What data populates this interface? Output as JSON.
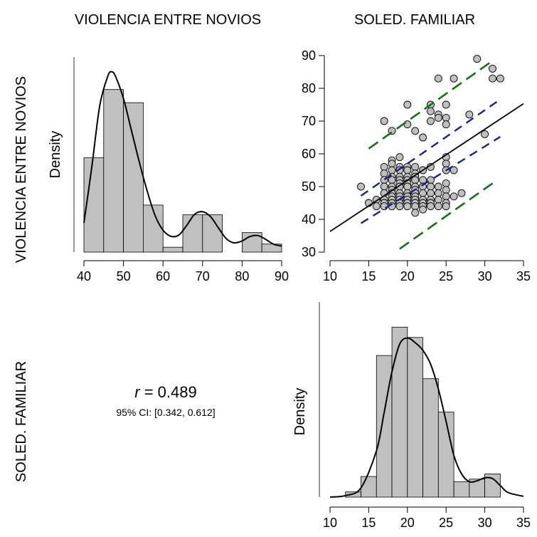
{
  "col_headers": [
    "VIOLENCIA ENTRE NOVIOS",
    "SOLED. FAMILIAR"
  ],
  "row_headers": [
    "VIOLENCIA ENTRE NOVIOS",
    "SOLED. FAMILIAR"
  ],
  "correlation": {
    "r_symbol": "r",
    "r_text": " = 0.489",
    "ci_text": "95% CI: [0.342, 0.612]"
  },
  "colors": {
    "bar_fill": "#c0c0c0",
    "point_fill": "#bfbfbf",
    "regression_line": "#000000",
    "confidence_band": "#1a237e",
    "prediction_band": "#1b6b1b"
  },
  "chart_data": [
    {
      "type": "bar",
      "title": "",
      "xlabel": "",
      "ylabel": "Density",
      "bins": [
        [
          40,
          45
        ],
        [
          45,
          50
        ],
        [
          50,
          55
        ],
        [
          55,
          60
        ],
        [
          60,
          65
        ],
        [
          65,
          70
        ],
        [
          70,
          75
        ],
        [
          75,
          80
        ],
        [
          80,
          85
        ],
        [
          85,
          90
        ]
      ],
      "values": [
        0.0387,
        0.0667,
        0.0613,
        0.0193,
        0.002,
        0.0153,
        0.0153,
        0.0,
        0.008,
        0.0033
      ],
      "density_curve": {
        "x": [
          40,
          42,
          44,
          46,
          47,
          48,
          50,
          52,
          54,
          56,
          58,
          60,
          62,
          64,
          66,
          68,
          70,
          72,
          74,
          76,
          78,
          80,
          82,
          84,
          86,
          88,
          90
        ],
        "y": [
          0.012,
          0.035,
          0.06,
          0.072,
          0.074,
          0.072,
          0.063,
          0.05,
          0.037,
          0.025,
          0.015,
          0.009,
          0.0065,
          0.007,
          0.011,
          0.0155,
          0.0166,
          0.0146,
          0.01,
          0.0055,
          0.0038,
          0.0046,
          0.0064,
          0.0068,
          0.0052,
          0.0032,
          0.0025
        ]
      },
      "x_ticks": [
        40,
        50,
        60,
        70,
        80,
        90
      ],
      "xlim": [
        40,
        90
      ],
      "ylim": [
        0,
        0.078
      ],
      "legend": "none"
    },
    {
      "type": "scatter",
      "title": "",
      "xlabel": "",
      "ylabel": "",
      "x_ticks": [
        10,
        15,
        20,
        25,
        30,
        35
      ],
      "y_ticks": [
        30,
        40,
        50,
        60,
        70,
        80,
        90
      ],
      "xlim": [
        10,
        35
      ],
      "ylim": [
        30,
        90
      ],
      "points": [
        [
          14,
          50
        ],
        [
          15,
          45
        ],
        [
          16,
          46
        ],
        [
          16,
          44
        ],
        [
          17,
          56
        ],
        [
          17,
          54
        ],
        [
          17,
          52
        ],
        [
          17,
          50
        ],
        [
          17,
          48
        ],
        [
          17,
          46
        ],
        [
          17,
          45
        ],
        [
          17,
          44
        ],
        [
          17,
          70
        ],
        [
          18,
          58
        ],
        [
          18,
          57
        ],
        [
          18,
          55
        ],
        [
          18,
          53
        ],
        [
          18,
          52
        ],
        [
          18,
          50
        ],
        [
          18,
          49
        ],
        [
          18,
          48
        ],
        [
          18,
          47
        ],
        [
          18,
          46
        ],
        [
          18,
          45
        ],
        [
          18,
          44
        ],
        [
          18,
          67
        ],
        [
          19,
          59
        ],
        [
          19,
          56
        ],
        [
          19,
          55
        ],
        [
          19,
          53
        ],
        [
          19,
          52
        ],
        [
          19,
          51
        ],
        [
          19,
          50
        ],
        [
          19,
          48
        ],
        [
          19,
          47
        ],
        [
          19,
          46
        ],
        [
          19,
          45
        ],
        [
          19,
          44
        ],
        [
          20,
          75
        ],
        [
          20,
          69
        ],
        [
          20,
          56
        ],
        [
          20,
          55
        ],
        [
          20,
          53
        ],
        [
          20,
          52
        ],
        [
          20,
          51
        ],
        [
          20,
          50
        ],
        [
          20,
          48
        ],
        [
          20,
          47
        ],
        [
          20,
          46
        ],
        [
          20,
          45
        ],
        [
          20,
          44
        ],
        [
          21,
          67
        ],
        [
          21,
          56
        ],
        [
          21,
          54
        ],
        [
          21,
          53
        ],
        [
          21,
          52
        ],
        [
          21,
          50
        ],
        [
          21,
          49
        ],
        [
          21,
          48
        ],
        [
          21,
          47
        ],
        [
          21,
          46
        ],
        [
          21,
          45
        ],
        [
          21,
          44
        ],
        [
          21,
          42
        ],
        [
          22,
          65
        ],
        [
          22,
          55
        ],
        [
          22,
          52
        ],
        [
          22,
          50
        ],
        [
          22,
          48
        ],
        [
          22,
          46
        ],
        [
          22,
          45
        ],
        [
          22,
          44
        ],
        [
          22,
          43
        ],
        [
          23,
          75
        ],
        [
          23,
          73
        ],
        [
          23,
          70
        ],
        [
          23,
          56
        ],
        [
          23,
          52
        ],
        [
          23,
          50
        ],
        [
          23,
          48
        ],
        [
          23,
          46
        ],
        [
          23,
          45
        ],
        [
          23,
          44
        ],
        [
          24,
          83
        ],
        [
          24,
          72
        ],
        [
          24,
          71
        ],
        [
          24,
          50
        ],
        [
          24,
          48
        ],
        [
          24,
          46
        ],
        [
          24,
          44
        ],
        [
          25,
          75
        ],
        [
          25,
          71
        ],
        [
          25,
          69
        ],
        [
          25,
          59
        ],
        [
          25,
          57
        ],
        [
          25,
          55
        ],
        [
          25,
          51
        ],
        [
          25,
          49
        ],
        [
          25,
          47
        ],
        [
          25,
          45
        ],
        [
          25,
          44
        ],
        [
          26,
          83
        ],
        [
          26,
          55
        ],
        [
          26,
          47
        ],
        [
          27,
          48
        ],
        [
          28,
          72
        ],
        [
          29,
          89
        ],
        [
          30,
          66
        ],
        [
          31,
          86
        ],
        [
          31,
          83
        ],
        [
          32,
          83
        ]
      ],
      "regression_line": {
        "x": [
          10,
          35
        ],
        "y": [
          36.3,
          75.3
        ]
      },
      "confidence_band": {
        "upper": {
          "x": [
            14,
            32
          ],
          "y": [
            47.2,
            76.6
          ]
        },
        "lower": {
          "x": [
            14,
            32
          ],
          "y": [
            38.8,
            65.2
          ]
        }
      },
      "prediction_band": {
        "upper": {
          "x": [
            15,
            31
          ],
          "y": [
            61.6,
            88.4
          ]
        },
        "lower": {
          "x": [
            19,
            31
          ],
          "y": [
            31.0,
            51.0
          ]
        }
      },
      "legend": "none"
    },
    {
      "type": "bar",
      "title": "",
      "xlabel": "",
      "ylabel": "Density",
      "bins": [
        [
          12,
          14
        ],
        [
          14,
          16
        ],
        [
          16,
          18
        ],
        [
          18,
          20
        ],
        [
          20,
          22
        ],
        [
          22,
          24
        ],
        [
          24,
          26
        ],
        [
          26,
          28
        ],
        [
          28,
          30
        ],
        [
          30,
          32
        ]
      ],
      "values": [
        0.0067,
        0.0267,
        0.1833,
        0.22,
        0.2067,
        0.1533,
        0.11,
        0.02,
        0.0233,
        0.03
      ],
      "density_curve": {
        "x": [
          10,
          12,
          14,
          16,
          17,
          18,
          19,
          20,
          21,
          22,
          23,
          24,
          25,
          26,
          27,
          28,
          29,
          30,
          31,
          32,
          33,
          35
        ],
        "y": [
          0.0,
          0.002,
          0.012,
          0.06,
          0.11,
          0.162,
          0.198,
          0.206,
          0.2,
          0.19,
          0.172,
          0.14,
          0.098,
          0.054,
          0.03,
          0.02,
          0.021,
          0.025,
          0.024,
          0.015,
          0.006,
          0.001
        ]
      },
      "x_ticks": [
        10,
        15,
        20,
        25,
        30,
        35
      ],
      "xlim": [
        10,
        35
      ],
      "ylim": [
        0,
        0.236
      ],
      "legend": "none"
    }
  ]
}
